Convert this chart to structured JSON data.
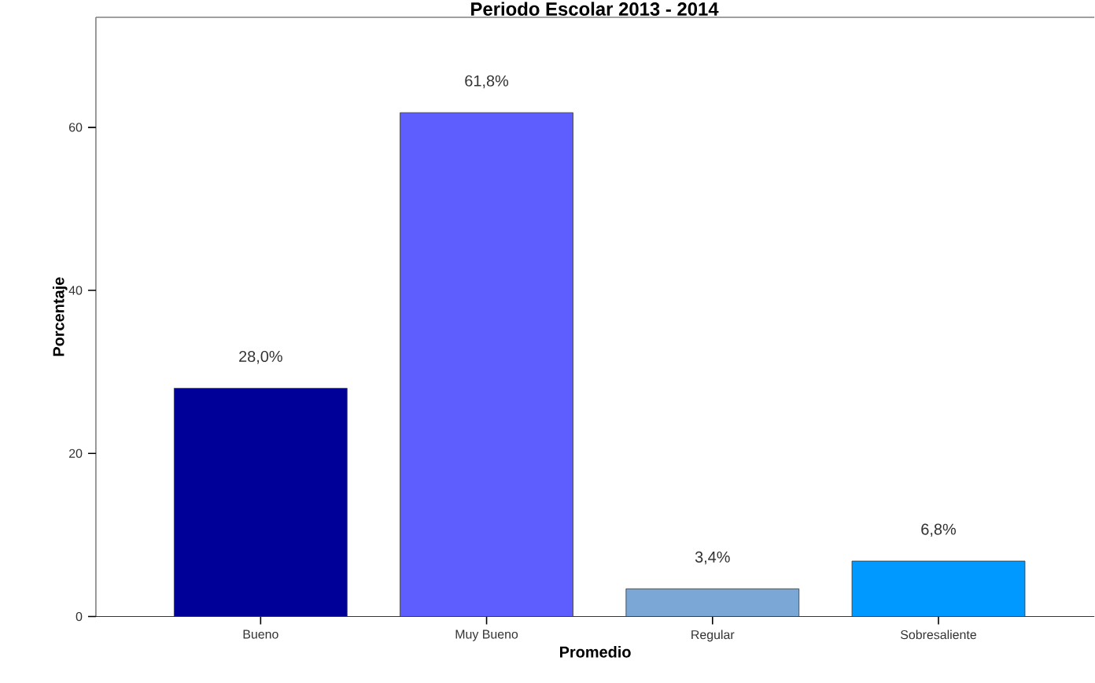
{
  "chart_data": {
    "type": "bar",
    "title": "Periodo Escolar 2013 - 2014",
    "xlabel": "Promedio",
    "ylabel": "Porcentaje",
    "categories": [
      "Bueno",
      "Muy Bueno",
      "Regular",
      "Sobresaliente"
    ],
    "values": [
      28.0,
      61.8,
      3.4,
      6.8
    ],
    "colors": [
      "#000099",
      "#5e5eff",
      "#7aa7d6",
      "#0099ff"
    ],
    "value_labels": [
      "28,0%",
      "61,8%",
      "3,4%",
      "6,8%"
    ],
    "ylim": [
      0,
      73.5
    ],
    "yticks": [
      0,
      20,
      40,
      60
    ],
    "grid": false
  }
}
